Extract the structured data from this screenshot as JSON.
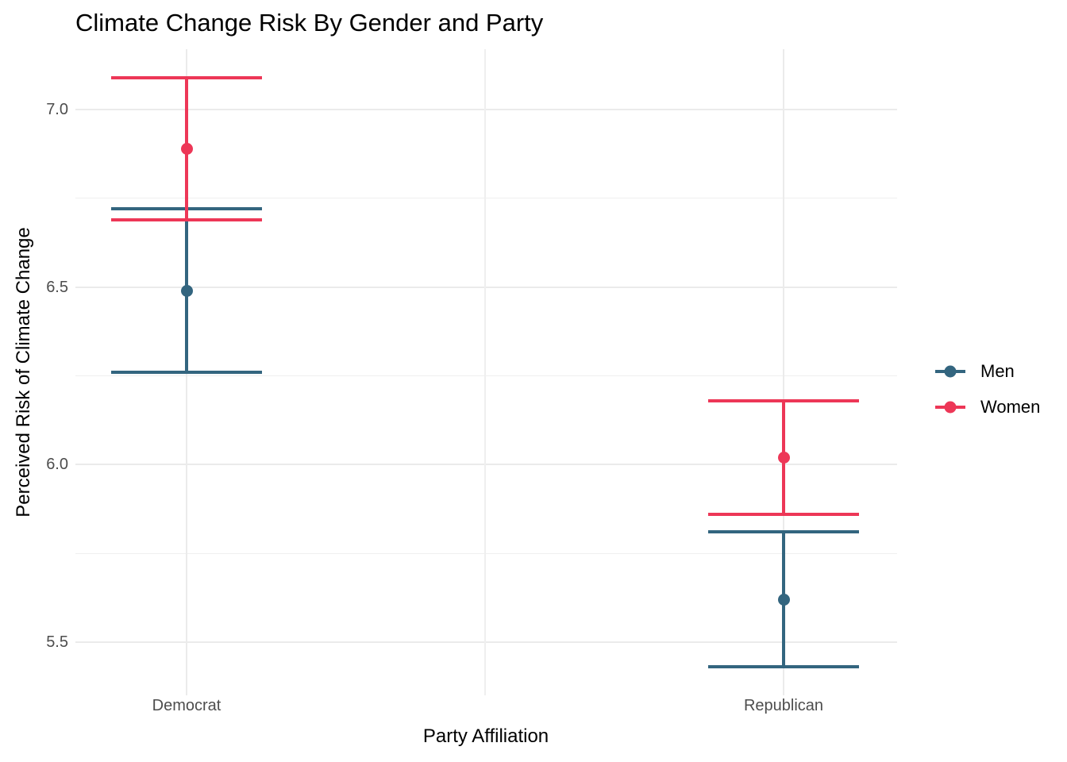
{
  "title": "Climate Change Risk By Gender and Party",
  "axes": {
    "x_title": "Party Affiliation",
    "y_title": "Perceived Risk of Climate Change",
    "x_tick_labels": [
      "Democrat",
      "Republican"
    ],
    "y_tick_labels": [
      "7.0",
      "6.5",
      "6.0",
      "5.5"
    ]
  },
  "legend": {
    "items": [
      {
        "label": "Men",
        "color": "#33657F"
      },
      {
        "label": "Women",
        "color": "#ED3757"
      }
    ]
  },
  "colors": {
    "men": "#33657F",
    "women": "#ED3757",
    "grid_major": "#EBEBEB",
    "grid_minor": "#EFEFEF",
    "tick_text": "#4D4D4D",
    "background": "#FFFFFF"
  },
  "chart_data": {
    "type": "pointrange",
    "title": "Climate Change Risk By Gender and Party",
    "xlabel": "Party Affiliation",
    "ylabel": "Perceived Risk of Climate Change",
    "categories": [
      "Democrat",
      "Republican"
    ],
    "series": [
      {
        "name": "Men",
        "color": "#33657F",
        "points": [
          {
            "category": "Democrat",
            "mean": 6.49,
            "lower": 6.26,
            "upper": 6.72
          },
          {
            "category": "Republican",
            "mean": 5.62,
            "lower": 5.43,
            "upper": 5.81
          }
        ]
      },
      {
        "name": "Women",
        "color": "#ED3757",
        "points": [
          {
            "category": "Democrat",
            "mean": 6.89,
            "lower": 6.69,
            "upper": 7.09
          },
          {
            "category": "Republican",
            "mean": 6.02,
            "lower": 5.86,
            "upper": 6.18
          }
        ]
      }
    ],
    "ylim": [
      5.35,
      7.17
    ],
    "y_major_gridlines": [
      7.0,
      6.5,
      6.0,
      5.5
    ],
    "y_minor_gridlines": [
      6.75,
      6.25,
      5.75
    ],
    "y_tick_values": [
      7.0,
      6.5,
      6.0,
      5.5
    ],
    "grid": true,
    "legend_position": "right"
  }
}
